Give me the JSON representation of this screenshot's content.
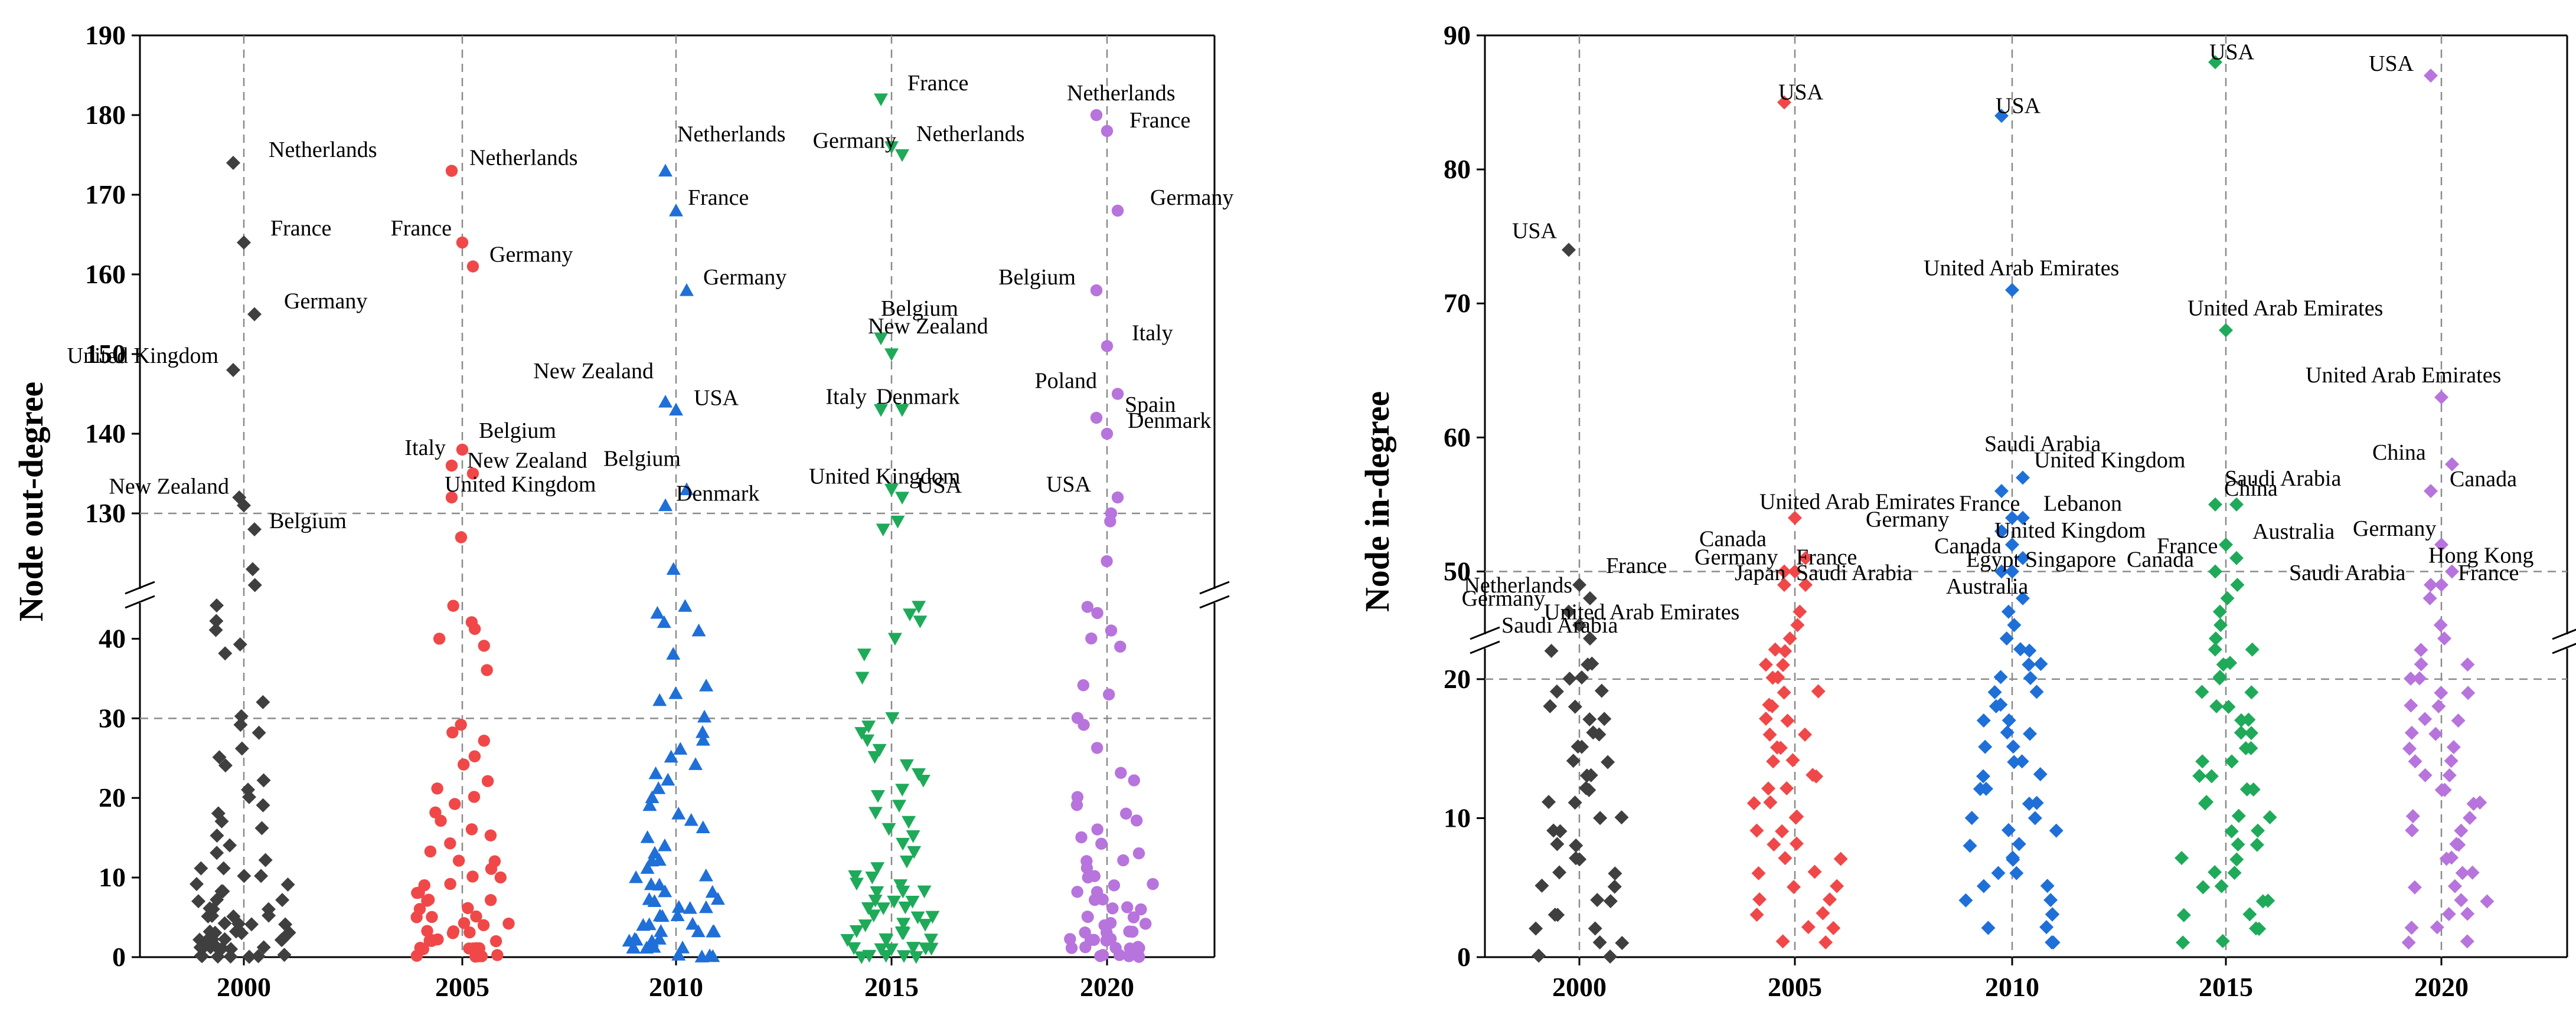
{
  "colors": {
    "2000": "#3f3f3f",
    "2005": "#f04848",
    "2010": "#1f6fd8",
    "2015": "#1faa5a",
    "2020": "#b774dd"
  },
  "chart_data": [
    {
      "type": "scatter",
      "xlabel": "",
      "ylabel": "Node out-degree",
      "categories": [
        "2000",
        "2005",
        "2010",
        "2015",
        "2020"
      ],
      "y_axis_break": {
        "lower_range": [
          0,
          45
        ],
        "upper_range": [
          120,
          190
        ]
      },
      "reference_lines": [
        30,
        130
      ],
      "lower_ticks": [
        "0",
        "10",
        "20",
        "30",
        "40"
      ],
      "upper_ticks": [
        "130",
        "140",
        "150",
        "160",
        "170",
        "180",
        "190"
      ],
      "grid": false,
      "series": [
        {
          "category": "2000",
          "marker": "diamond",
          "labeled_points": [
            {
              "label": "Netherlands",
              "value": 174
            },
            {
              "label": "France",
              "value": 164
            },
            {
              "label": "Germany",
              "value": 155
            },
            {
              "label": "United Kingdom",
              "value": 148
            },
            {
              "label": "New Zealand",
              "value": 131
            },
            {
              "label": "Belgium",
              "value": 128
            }
          ],
          "other_high_values": [
            132,
            123,
            121
          ],
          "low_values": [
            44,
            42,
            41,
            39,
            38,
            32,
            30,
            29,
            28,
            26,
            25,
            24,
            22,
            21,
            20,
            19,
            18,
            17,
            16,
            15,
            14,
            13,
            12,
            11,
            11,
            10,
            10,
            9,
            9,
            8,
            8,
            7,
            7,
            7,
            6,
            6,
            6,
            5,
            5,
            5,
            5,
            4,
            4,
            4,
            4,
            3,
            3,
            3,
            3,
            3,
            2,
            2,
            2,
            2,
            2,
            2,
            1,
            1,
            1,
            1,
            1,
            1,
            1,
            0,
            0,
            0,
            0,
            0,
            0,
            0
          ]
        },
        {
          "category": "2005",
          "marker": "circle",
          "labeled_points": [
            {
              "label": "Netherlands",
              "value": 173
            },
            {
              "label": "France",
              "value": 164
            },
            {
              "label": "Germany",
              "value": 161
            },
            {
              "label": "Italy",
              "value": 136
            },
            {
              "label": "Belgium",
              "value": 138
            },
            {
              "label": "New Zealand",
              "value": 135
            },
            {
              "label": "United Kingdom",
              "value": 132
            }
          ],
          "other_high_values": [
            127
          ],
          "low_values": [
            44,
            42,
            41,
            40,
            39,
            36,
            29,
            28,
            27,
            25,
            24,
            22,
            21,
            20,
            19,
            18,
            17,
            16,
            15,
            14,
            13,
            12,
            12,
            11,
            10,
            10,
            9,
            9,
            8,
            8,
            7,
            7,
            7,
            6,
            6,
            5,
            5,
            5,
            4,
            4,
            4,
            3,
            3,
            3,
            3,
            2,
            2,
            2,
            2,
            2,
            1,
            1,
            1,
            1,
            1,
            1,
            0,
            0,
            0,
            0,
            0,
            0
          ]
        },
        {
          "category": "2010",
          "marker": "triangle-up",
          "labeled_points": [
            {
              "label": "Netherlands",
              "value": 173
            },
            {
              "label": "France",
              "value": 168
            },
            {
              "label": "Germany",
              "value": 158
            },
            {
              "label": "New Zealand",
              "value": 144
            },
            {
              "label": "USA",
              "value": 143
            },
            {
              "label": "Belgium",
              "value": 133
            },
            {
              "label": "Denmark",
              "value": 131
            }
          ],
          "other_high_values": [
            123
          ],
          "low_values": [
            44,
            43,
            42,
            41,
            38,
            34,
            33,
            32,
            30,
            28,
            27,
            26,
            25,
            24,
            23,
            22,
            21,
            20,
            19,
            18,
            17,
            16,
            15,
            14,
            13,
            12,
            12,
            11,
            10,
            10,
            9,
            9,
            8,
            8,
            7,
            7,
            7,
            6,
            6,
            6,
            5,
            5,
            5,
            4,
            4,
            4,
            3,
            3,
            3,
            3,
            2,
            2,
            2,
            2,
            2,
            1,
            1,
            1,
            1,
            1,
            0,
            0,
            0,
            0
          ]
        },
        {
          "category": "2015",
          "marker": "triangle-down",
          "labeled_points": [
            {
              "label": "France",
              "value": 182
            },
            {
              "label": "Netherlands",
              "value": 176
            },
            {
              "label": "Germany",
              "value": 175
            },
            {
              "label": "Belgium",
              "value": 152
            },
            {
              "label": "New Zealand",
              "value": 150
            },
            {
              "label": "Italy",
              "value": 143
            },
            {
              "label": "Denmark",
              "value": 143
            },
            {
              "label": "United Kingdom",
              "value": 133
            },
            {
              "label": "USA",
              "value": 132
            }
          ],
          "other_high_values": [
            129,
            128
          ],
          "low_values": [
            44,
            43,
            42,
            40,
            38,
            35,
            30,
            29,
            28,
            27,
            26,
            25,
            24,
            23,
            22,
            21,
            20,
            19,
            18,
            17,
            16,
            15,
            14,
            13,
            12,
            11,
            10,
            10,
            9,
            9,
            8,
            8,
            8,
            7,
            7,
            7,
            6,
            6,
            6,
            5,
            5,
            5,
            4,
            4,
            4,
            3,
            3,
            3,
            3,
            2,
            2,
            2,
            2,
            1,
            1,
            1,
            1,
            1,
            1,
            0,
            0,
            0,
            0,
            0
          ]
        },
        {
          "category": "2020",
          "marker": "circle",
          "labeled_points": [
            {
              "label": "Netherlands",
              "value": 180
            },
            {
              "label": "France",
              "value": 178
            },
            {
              "label": "Germany",
              "value": 168
            },
            {
              "label": "Belgium",
              "value": 158
            },
            {
              "label": "Italy",
              "value": 151
            },
            {
              "label": "Poland",
              "value": 145
            },
            {
              "label": "Spain",
              "value": 142
            },
            {
              "label": "Denmark",
              "value": 140
            },
            {
              "label": "USA",
              "value": 132
            }
          ],
          "other_high_values": [
            130,
            129,
            124
          ],
          "low_values": [
            44,
            43,
            41,
            40,
            39,
            34,
            33,
            30,
            29,
            26,
            23,
            22,
            20,
            19,
            18,
            17,
            16,
            15,
            14,
            13,
            12,
            12,
            11,
            10,
            10,
            9,
            9,
            8,
            8,
            7,
            7,
            7,
            6,
            6,
            6,
            5,
            5,
            5,
            4,
            4,
            4,
            3,
            3,
            3,
            3,
            2,
            2,
            2,
            2,
            2,
            1,
            1,
            1,
            1,
            1,
            1,
            0,
            0,
            0,
            0,
            0,
            0
          ]
        }
      ]
    },
    {
      "type": "scatter",
      "xlabel": "",
      "ylabel": "Node in-degree",
      "categories": [
        "2000",
        "2005",
        "2010",
        "2015",
        "2020"
      ],
      "y_axis_break": {
        "lower_range": [
          0,
          22.5
        ],
        "upper_range": [
          45,
          90
        ]
      },
      "reference_lines": [
        20,
        50
      ],
      "lower_ticks": [
        "0",
        "10",
        "20"
      ],
      "upper_ticks": [
        "50",
        "60",
        "70",
        "80",
        "90"
      ],
      "grid": false,
      "series": [
        {
          "category": "2000",
          "marker": "diamond",
          "labeled_points": [
            {
              "label": "USA",
              "value": 74
            },
            {
              "label": "France",
              "value": 49
            },
            {
              "label": "Netherlands",
              "value": 48
            },
            {
              "label": "Germany",
              "value": 47
            },
            {
              "label": "United Arab Emirates",
              "value": 46
            },
            {
              "label": "Saudi Arabia",
              "value": 45
            }
          ],
          "other_high_values": [],
          "low_values": [
            22,
            21,
            21,
            20,
            20,
            19,
            19,
            18,
            18,
            17,
            17,
            16,
            16,
            15,
            15,
            14,
            14,
            13,
            13,
            12,
            12,
            11,
            11,
            10,
            10,
            9,
            9,
            8,
            8,
            7,
            7,
            6,
            6,
            5,
            5,
            4,
            4,
            3,
            3,
            2,
            2,
            1,
            1,
            0,
            0
          ]
        },
        {
          "category": "2005",
          "marker": "diamond",
          "labeled_points": [
            {
              "label": "USA",
              "value": 85
            },
            {
              "label": "United Arab Emirates",
              "value": 54
            },
            {
              "label": "Canada",
              "value": 51
            },
            {
              "label": "France",
              "value": 50
            },
            {
              "label": "Germany",
              "value": 50
            },
            {
              "label": "Japan",
              "value": 49
            },
            {
              "label": "Saudi Arabia",
              "value": 49
            }
          ],
          "other_high_values": [
            47,
            46,
            45
          ],
          "low_values": [
            22,
            22,
            21,
            21,
            20,
            20,
            19,
            19,
            18,
            18,
            17,
            17,
            16,
            16,
            15,
            15,
            14,
            14,
            13,
            13,
            12,
            12,
            11,
            11,
            10,
            10,
            9,
            9,
            8,
            8,
            7,
            7,
            6,
            6,
            5,
            5,
            4,
            4,
            3,
            3,
            2,
            2,
            1,
            1
          ]
        },
        {
          "category": "2010",
          "marker": "diamond",
          "labeled_points": [
            {
              "label": "USA",
              "value": 84
            },
            {
              "label": "United Arab Emirates",
              "value": 71
            },
            {
              "label": "Saudi Arabia",
              "value": 57
            },
            {
              "label": "United Kingdom",
              "value": 56
            },
            {
              "label": "France",
              "value": 54
            },
            {
              "label": "Lebanon",
              "value": 54
            },
            {
              "label": "Germany",
              "value": 53
            },
            {
              "label": "United Kingdom",
              "value": 52
            },
            {
              "label": "Canada",
              "value": 51
            },
            {
              "label": "Egypt",
              "value": 50
            },
            {
              "label": "Singapore",
              "value": 50
            },
            {
              "label": "Australia",
              "value": 48
            }
          ],
          "other_high_values": [
            47,
            46,
            45
          ],
          "low_values": [
            22,
            22,
            21,
            21,
            20,
            20,
            19,
            19,
            18,
            18,
            17,
            17,
            16,
            16,
            15,
            15,
            14,
            14,
            13,
            13,
            12,
            12,
            11,
            11,
            10,
            10,
            9,
            9,
            8,
            8,
            7,
            7,
            6,
            6,
            5,
            5,
            4,
            4,
            3,
            3,
            2,
            2,
            1,
            1
          ]
        },
        {
          "category": "2015",
          "marker": "diamond",
          "labeled_points": [
            {
              "label": "USA",
              "value": 88
            },
            {
              "label": "United Arab Emirates",
              "value": 68
            },
            {
              "label": "Saudi Arabia",
              "value": 55
            },
            {
              "label": "China",
              "value": 55
            },
            {
              "label": "Australia",
              "value": 52
            },
            {
              "label": "France",
              "value": 51
            },
            {
              "label": "Canada",
              "value": 50
            }
          ],
          "other_high_values": [
            49,
            48,
            47,
            46,
            45
          ],
          "low_values": [
            22,
            22,
            21,
            21,
            20,
            20,
            19,
            19,
            18,
            18,
            17,
            17,
            16,
            16,
            15,
            15,
            14,
            14,
            13,
            13,
            12,
            12,
            11,
            11,
            10,
            10,
            9,
            9,
            8,
            8,
            7,
            7,
            6,
            6,
            5,
            5,
            4,
            4,
            3,
            3,
            2,
            2,
            1,
            1
          ]
        },
        {
          "category": "2020",
          "marker": "diamond",
          "labeled_points": [
            {
              "label": "USA",
              "value": 87
            },
            {
              "label": "United Arab Emirates",
              "value": 63
            },
            {
              "label": "China",
              "value": 58
            },
            {
              "label": "Canada",
              "value": 56
            },
            {
              "label": "Germany",
              "value": 52
            },
            {
              "label": "Hong Kong",
              "value": 50
            },
            {
              "label": "Saudi Arabia",
              "value": 49
            },
            {
              "label": "France",
              "value": 49
            }
          ],
          "other_high_values": [
            48,
            46,
            45
          ],
          "low_values": [
            22,
            21,
            21,
            20,
            20,
            19,
            19,
            18,
            18,
            17,
            17,
            16,
            16,
            15,
            15,
            14,
            14,
            13,
            13,
            12,
            12,
            11,
            11,
            10,
            10,
            9,
            9,
            8,
            8,
            7,
            7,
            6,
            6,
            5,
            5,
            4,
            4,
            3,
            3,
            2,
            2,
            1,
            1
          ]
        }
      ]
    }
  ]
}
